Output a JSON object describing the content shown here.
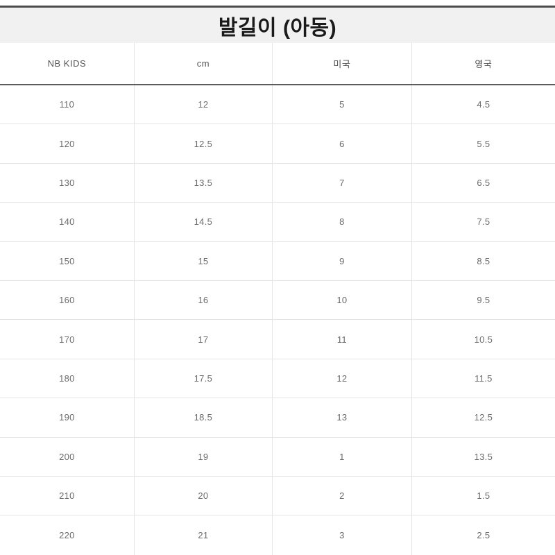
{
  "title": "발길이 (아동)",
  "table": {
    "columns": [
      "NB KIDS",
      "cm",
      "미국",
      "영국"
    ],
    "rows": [
      [
        "110",
        "12",
        "5",
        "4.5"
      ],
      [
        "120",
        "12.5",
        "6",
        "5.5"
      ],
      [
        "130",
        "13.5",
        "7",
        "6.5"
      ],
      [
        "140",
        "14.5",
        "8",
        "7.5"
      ],
      [
        "150",
        "15",
        "9",
        "8.5"
      ],
      [
        "160",
        "16",
        "10",
        "9.5"
      ],
      [
        "170",
        "17",
        "11",
        "10.5"
      ],
      [
        "180",
        "17.5",
        "12",
        "11.5"
      ],
      [
        "190",
        "18.5",
        "13",
        "12.5"
      ],
      [
        "200",
        "19",
        "1",
        "13.5"
      ],
      [
        "210",
        "20",
        "2",
        "1.5"
      ],
      [
        "220",
        "21",
        "3",
        "2.5"
      ]
    ]
  },
  "colors": {
    "title_band_bg": "#f1f1f1",
    "band_top_border": "#4b4b4b",
    "header_bottom_border": "#5c5c5c",
    "grid_line": "#e4e4e4",
    "title_text": "#1b1b1b",
    "header_text": "#555555",
    "cell_text": "#6a6a6a"
  }
}
